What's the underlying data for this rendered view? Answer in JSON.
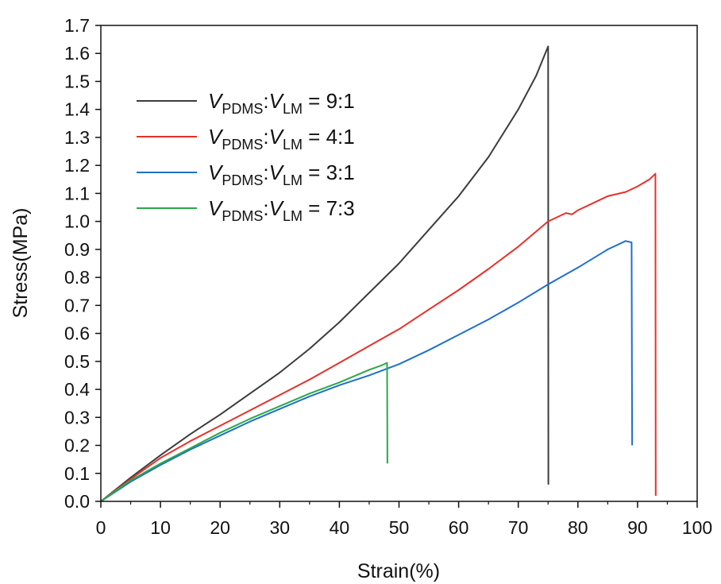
{
  "chart_data": {
    "type": "line",
    "xlabel": "Strain(%)",
    "ylabel": "Stress(MPa)",
    "xlim": [
      0,
      100
    ],
    "ylim": [
      0,
      1.7
    ],
    "x_ticks": [
      "0",
      "10",
      "20",
      "30",
      "40",
      "50",
      "60",
      "70",
      "80",
      "90",
      "100"
    ],
    "y_ticks": [
      "0.0",
      "0.1",
      "0.2",
      "0.3",
      "0.4",
      "0.5",
      "0.6",
      "0.7",
      "0.8",
      "0.9",
      "1.0",
      "1.1",
      "1.2",
      "1.3",
      "1.4",
      "1.5",
      "1.6",
      "1.7"
    ],
    "grid": false,
    "legend_position": "top-left",
    "series": [
      {
        "legend": {
          "v1": "V",
          "sub1": "PDMS",
          "sep": ":",
          "v2": "V",
          "sub2": "LM",
          "ratio": " = 9:1"
        },
        "color": "#3c3c3c",
        "points": [
          [
            0,
            0
          ],
          [
            5,
            0.085
          ],
          [
            10,
            0.165
          ],
          [
            15,
            0.24
          ],
          [
            20,
            0.31
          ],
          [
            25,
            0.385
          ],
          [
            30,
            0.46
          ],
          [
            35,
            0.545
          ],
          [
            40,
            0.64
          ],
          [
            45,
            0.745
          ],
          [
            50,
            0.85
          ],
          [
            55,
            0.97
          ],
          [
            60,
            1.09
          ],
          [
            65,
            1.23
          ],
          [
            70,
            1.4
          ],
          [
            73,
            1.52
          ],
          [
            75,
            1.625
          ],
          [
            75.05,
            0.06
          ]
        ]
      },
      {
        "legend": {
          "v1": "V",
          "sub1": "PDMS",
          "sep": ":",
          "v2": "V",
          "sub2": "LM",
          "ratio": " = 4:1"
        },
        "color": "#e8302a",
        "points": [
          [
            0,
            0
          ],
          [
            5,
            0.08
          ],
          [
            10,
            0.155
          ],
          [
            15,
            0.215
          ],
          [
            20,
            0.27
          ],
          [
            25,
            0.325
          ],
          [
            30,
            0.38
          ],
          [
            35,
            0.435
          ],
          [
            40,
            0.495
          ],
          [
            45,
            0.555
          ],
          [
            50,
            0.615
          ],
          [
            55,
            0.685
          ],
          [
            60,
            0.755
          ],
          [
            65,
            0.83
          ],
          [
            70,
            0.91
          ],
          [
            75,
            1.0
          ],
          [
            77,
            1.02
          ],
          [
            78,
            1.03
          ],
          [
            79,
            1.025
          ],
          [
            80,
            1.04
          ],
          [
            85,
            1.09
          ],
          [
            88,
            1.105
          ],
          [
            90,
            1.125
          ],
          [
            92,
            1.15
          ],
          [
            93,
            1.17
          ],
          [
            93.05,
            0.02
          ]
        ]
      },
      {
        "legend": {
          "v1": "V",
          "sub1": "PDMS",
          "sep": ":",
          "v2": "V",
          "sub2": "LM",
          "ratio": " = 3:1"
        },
        "color": "#1f6fce",
        "points": [
          [
            0,
            0
          ],
          [
            5,
            0.07
          ],
          [
            10,
            0.13
          ],
          [
            15,
            0.185
          ],
          [
            20,
            0.235
          ],
          [
            25,
            0.285
          ],
          [
            30,
            0.33
          ],
          [
            35,
            0.375
          ],
          [
            40,
            0.415
          ],
          [
            45,
            0.45
          ],
          [
            50,
            0.49
          ],
          [
            55,
            0.54
          ],
          [
            60,
            0.595
          ],
          [
            65,
            0.65
          ],
          [
            70,
            0.71
          ],
          [
            75,
            0.775
          ],
          [
            80,
            0.835
          ],
          [
            85,
            0.9
          ],
          [
            88,
            0.93
          ],
          [
            89,
            0.925
          ],
          [
            89.1,
            0.2
          ]
        ]
      },
      {
        "legend": {
          "v1": "V",
          "sub1": "PDMS",
          "sep": ":",
          "v2": "V",
          "sub2": "LM",
          "ratio": " = 7:3"
        },
        "color": "#2aa84a",
        "points": [
          [
            0,
            0
          ],
          [
            5,
            0.075
          ],
          [
            10,
            0.135
          ],
          [
            15,
            0.19
          ],
          [
            20,
            0.245
          ],
          [
            25,
            0.295
          ],
          [
            30,
            0.34
          ],
          [
            35,
            0.385
          ],
          [
            40,
            0.425
          ],
          [
            45,
            0.47
          ],
          [
            47,
            0.485
          ],
          [
            48,
            0.495
          ],
          [
            48.05,
            0.135
          ]
        ]
      }
    ]
  }
}
